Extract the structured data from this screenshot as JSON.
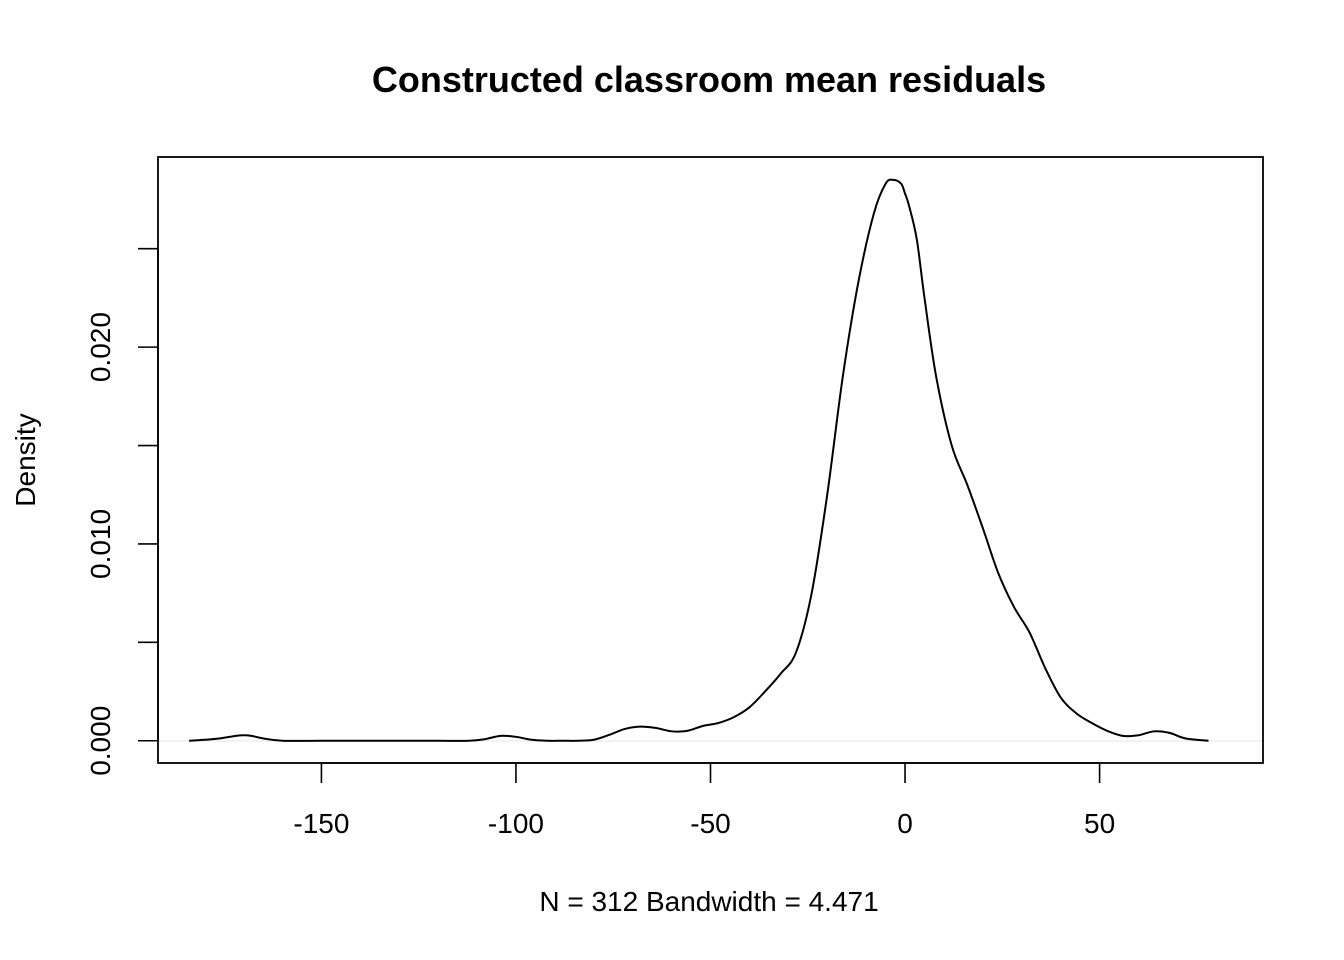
{
  "chart_data": {
    "type": "line",
    "title": "Constructed classroom mean residuals",
    "xlabel": "N = 312   Bandwidth = 4.471",
    "ylabel": "Density",
    "xlim": [
      -192,
      92
    ],
    "ylim": [
      -0.00113,
      0.02966
    ],
    "x_ticks": [
      -150,
      -100,
      -50,
      0,
      50
    ],
    "x_tick_labels": [
      "-150",
      "-100",
      "-50",
      "0",
      "50"
    ],
    "y_ticks": [
      0.0,
      0.005,
      0.01,
      0.015,
      0.02,
      0.025
    ],
    "y_tick_labels": [
      "0.000",
      "",
      "0.010",
      "",
      "0.020",
      ""
    ],
    "grid": false,
    "legend": "none",
    "series": [
      {
        "color": "#000000",
        "x": [
          -184,
          -180,
          -176,
          -172,
          -170,
          -168,
          -165,
          -160,
          -150,
          -140,
          -130,
          -120,
          -112,
          -108,
          -104,
          -100,
          -96,
          -92,
          -88,
          -84,
          -80,
          -76,
          -72,
          -68,
          -64,
          -60,
          -56,
          -52,
          -48,
          -44,
          -40,
          -36,
          -32,
          -28,
          -24,
          -20,
          -16,
          -12,
          -8,
          -5,
          -3,
          -1,
          0,
          1,
          3,
          5,
          8,
          12,
          16,
          20,
          24,
          28,
          32,
          36,
          40,
          44,
          48,
          52,
          56,
          60,
          64,
          68,
          72,
          78
        ],
        "y": [
          0.0,
          5e-05,
          0.00012,
          0.00025,
          0.00028,
          0.00025,
          0.00012,
          0.0,
          0.0,
          0.0,
          0.0,
          0.0,
          0.0,
          8e-05,
          0.00025,
          0.0002,
          5e-05,
          0.0,
          0.0,
          0.0,
          5e-05,
          0.0003,
          0.0006,
          0.00072,
          0.00065,
          0.00048,
          0.0005,
          0.00075,
          0.0009,
          0.0012,
          0.0017,
          0.0025,
          0.0034,
          0.0045,
          0.0075,
          0.0125,
          0.0185,
          0.0233,
          0.0268,
          0.0283,
          0.0285,
          0.0283,
          0.0278,
          0.0272,
          0.0255,
          0.0225,
          0.0185,
          0.015,
          0.013,
          0.0108,
          0.0085,
          0.0068,
          0.0055,
          0.0037,
          0.0022,
          0.0014,
          0.0009,
          0.0005,
          0.00025,
          0.00028,
          0.00048,
          0.0004,
          0.00012,
          0.0
        ]
      }
    ]
  }
}
